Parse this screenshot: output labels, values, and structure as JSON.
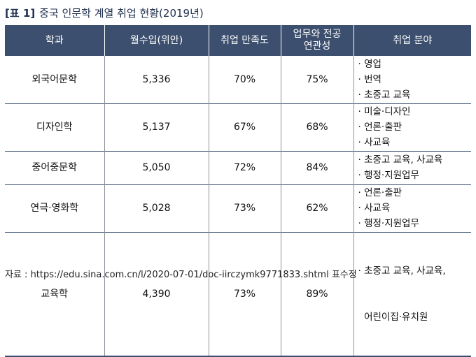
{
  "title": {
    "label": "[표 1]",
    "text": "중국 인문학 계열 취업 현황(2019년)"
  },
  "table": {
    "headers": [
      "학과",
      "월수입(위안)",
      "취업 만족도",
      "업무와 전공 연관성",
      "취업 분야"
    ],
    "header_line1": "업무와 전공",
    "header_line2": "연관성",
    "rows": [
      {
        "dept": "외국어문학",
        "income": "5,336",
        "satisfaction": "70%",
        "relevance": "75%",
        "fields": [
          "· 영업",
          "· 번역",
          "· 초중고 교육"
        ]
      },
      {
        "dept": "디자인학",
        "income": "5,137",
        "satisfaction": "67%",
        "relevance": "68%",
        "fields": [
          "· 미술·디자인",
          "· 언론·출판",
          "· 사교육"
        ]
      },
      {
        "dept": "중어중문학",
        "income": "5,050",
        "satisfaction": "72%",
        "relevance": "84%",
        "fields": [
          "· 초중고 교육, 사교육",
          "· 행정·지원업무"
        ]
      },
      {
        "dept": "연극·영화학",
        "income": "5,028",
        "satisfaction": "73%",
        "relevance": "62%",
        "fields": [
          "· 언론·출판",
          "· 사교육",
          "· 행정·지원업무"
        ]
      },
      {
        "dept": "교육학",
        "income": "4,390",
        "satisfaction": "73%",
        "relevance": "89%",
        "fields": [
          "· 초중고 교육, 사교육,",
          "  어린이집·유치원"
        ]
      }
    ]
  },
  "source": "자료 : https://edu.sina.com.cn/l/2020-07-01/doc-iirczymk9771833.shtml 표수정"
}
